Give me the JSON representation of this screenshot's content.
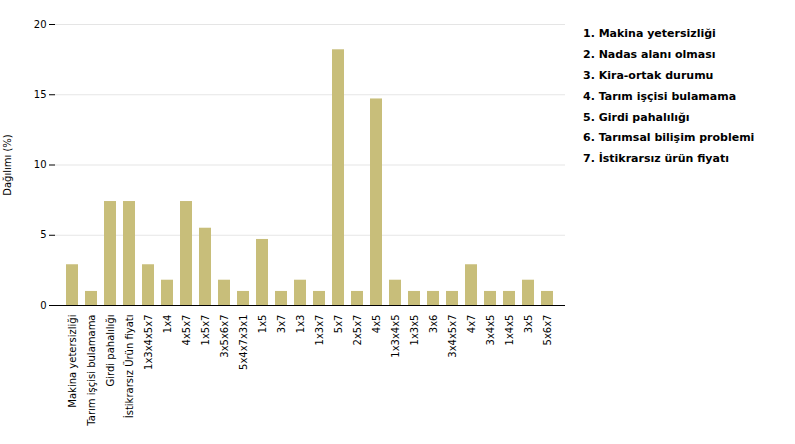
{
  "chart_data": {
    "type": "bar",
    "categories": [
      "Makina yetersizliği",
      "Tarım işçisi bulamama",
      "Girdi pahalılığı",
      "İstikrarsız Ürün fiyatı",
      "1x3x4x5x7",
      "1x4",
      "4x5x7",
      "1x5x7",
      "3x5x6x7",
      "5x4x7x3x1",
      "1x5",
      "3x7",
      "1x3",
      "1x3x7",
      "5x7",
      "2x5x7",
      "4x5",
      "1x3x4x5",
      "1x3x5",
      "3x6",
      "3x4x5x7",
      "4x7",
      "3x4x5",
      "1x4x5",
      "3x5",
      "5x6x7"
    ],
    "values": [
      2.9,
      1.0,
      7.4,
      7.4,
      2.9,
      1.8,
      7.4,
      5.5,
      1.8,
      1.0,
      4.7,
      1.0,
      1.8,
      1.0,
      18.2,
      1.0,
      14.7,
      1.8,
      1.0,
      1.0,
      1.0,
      2.9,
      1.0,
      1.0,
      1.8,
      1.0
    ],
    "color": "#c8be7a",
    "ylabel": "Dağılımı (%)",
    "ylim": [
      0,
      20
    ],
    "yticks": [
      0,
      5,
      10,
      15,
      20
    ],
    "grid": true,
    "annotations": [
      "1. Makina yetersizliği",
      "2. Nadas alanı olması",
      "3. Kira-ortak durumu",
      "4. Tarım işçisi bulamama",
      "5. Girdi pahalılığı",
      "6. Tarımsal bilişim problemi",
      "7. İstikrarsız ürün fiyatı"
    ]
  }
}
